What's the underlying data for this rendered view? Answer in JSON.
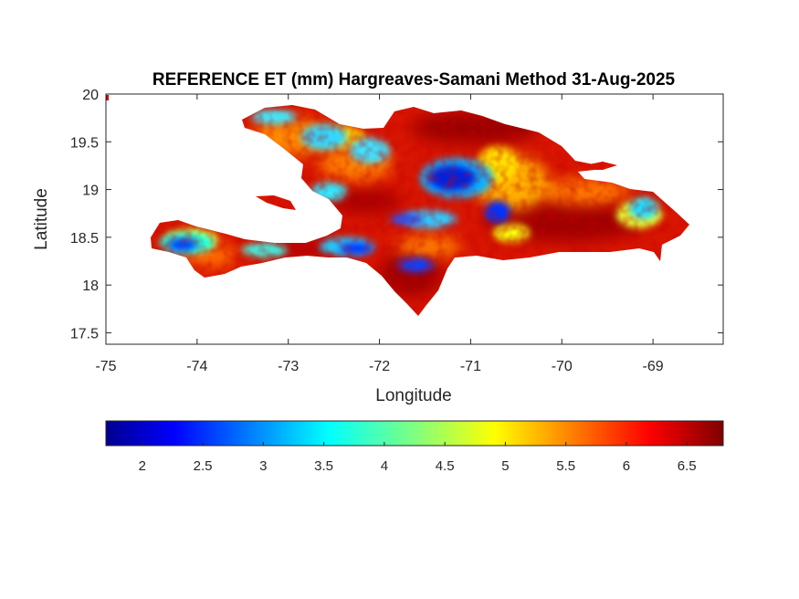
{
  "title": "REFERENCE ET (mm) Hargreaves-Samani Method  31-Aug-2025",
  "xlabel": "Longitude",
  "ylabel": "Latitude",
  "colors": {
    "low": "#00008f",
    "mid": "#ffff00",
    "high": "#800000",
    "axis": "#262626"
  },
  "chart_data": {
    "type": "heatmap",
    "title": "REFERENCE ET (mm) Hargreaves-Samani Method  31-Aug-2025",
    "xlabel": "Longitude",
    "ylabel": "Latitude",
    "xlim": [
      -75,
      -68.23
    ],
    "ylim": [
      17.38,
      20
    ],
    "x_ticks": [
      -75,
      -74,
      -73,
      -72,
      -71,
      -70,
      -69
    ],
    "x_tick_labels": [
      "-75",
      "-74",
      "-73",
      "-72",
      "-71",
      "-70",
      "-69"
    ],
    "y_ticks": [
      17.5,
      18,
      18.5,
      19,
      19.5,
      20
    ],
    "y_tick_labels": [
      "17.5",
      "18",
      "18.5",
      "19",
      "19.5",
      "20"
    ],
    "colormap": "jet",
    "colorbar": {
      "orientation": "horizontal",
      "location": "below",
      "range": [
        1.7,
        6.8
      ],
      "ticks": [
        2,
        2.5,
        3,
        3.5,
        4,
        4.5,
        5,
        5.5,
        6,
        6.5
      ],
      "tick_labels": [
        "2",
        "2.5",
        "3",
        "3.5",
        "4",
        "4.5",
        "5",
        "5.5",
        "6",
        "6.5"
      ]
    },
    "grid": false,
    "region_extent": {
      "lon": [
        -74.5,
        -68.3
      ],
      "lat": [
        17.6,
        19.95
      ]
    },
    "low_et_areas": [
      {
        "lon": -74.15,
        "lat": 18.42,
        "value": 2.2
      },
      {
        "lon": -73.3,
        "lat": 18.35,
        "value": 3.5
      },
      {
        "lon": -72.35,
        "lat": 18.4,
        "value": 2.6
      },
      {
        "lon": -71.95,
        "lat": 18.25,
        "value": 2.4
      },
      {
        "lon": -71.15,
        "lat": 19.15,
        "value": 2.0
      },
      {
        "lon": -70.7,
        "lat": 18.8,
        "value": 2.3
      },
      {
        "lon": -71.7,
        "lat": 18.7,
        "value": 2.6
      },
      {
        "lon": -72.9,
        "lat": 19.8,
        "value": 3.3
      },
      {
        "lon": -72.3,
        "lat": 19.55,
        "value": 3.3
      },
      {
        "lon": -72.6,
        "lat": 19.0,
        "value": 3.3
      },
      {
        "lon": -69.0,
        "lat": 18.85,
        "value": 3.8
      }
    ]
  }
}
